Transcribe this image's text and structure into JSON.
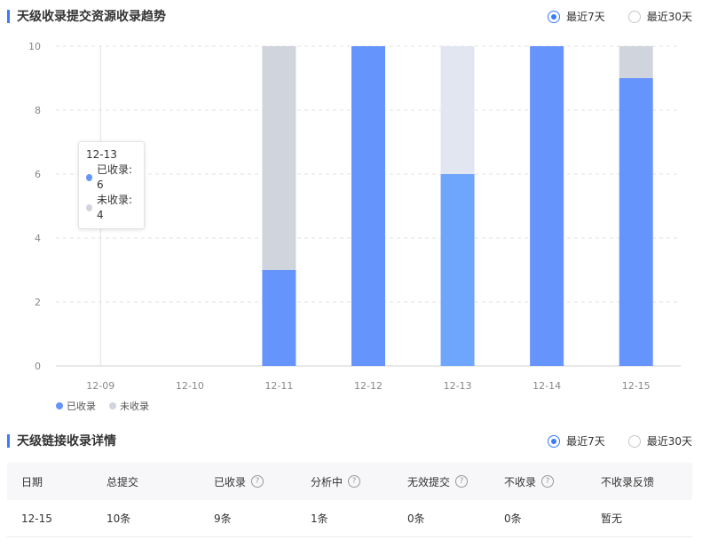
{
  "trend_section": {
    "title": "天级收录提交资源收录趋势",
    "range_options": [
      {
        "label": "最近7天",
        "selected": true
      },
      {
        "label": "最近30天",
        "selected": false
      }
    ]
  },
  "chart_data": {
    "type": "bar",
    "stacked": true,
    "categories": [
      "12-09",
      "12-10",
      "12-11",
      "12-12",
      "12-13",
      "12-14",
      "12-15"
    ],
    "series": [
      {
        "name": "已收录",
        "values": [
          0,
          0,
          3,
          10,
          6,
          10,
          9
        ],
        "color": "#6694fd"
      },
      {
        "name": "未收录",
        "values": [
          0,
          0,
          7,
          0,
          4,
          0,
          1
        ],
        "color": "#d0d4dc"
      }
    ],
    "highlight_category": "12-13",
    "highlight_colors": {
      "已收录": "#6ea6fe",
      "未收录": "#e1e6f0"
    },
    "ylim": [
      0,
      10
    ],
    "yticks": [
      0,
      2,
      4,
      6,
      8,
      10
    ],
    "grid": true,
    "legend_position": "bottom-left"
  },
  "tooltip": {
    "title": "12-13",
    "rows": [
      {
        "label": "已收录: 6",
        "color": "#6694fd"
      },
      {
        "label": "未收录: 4",
        "color": "#d0d4dc"
      }
    ]
  },
  "detail_section": {
    "title": "天级链接收录详情",
    "range_options": [
      {
        "label": "最近7天",
        "selected": true
      },
      {
        "label": "最近30天",
        "selected": false
      }
    ],
    "table": {
      "columns": [
        {
          "label": "日期",
          "help": false
        },
        {
          "label": "总提交",
          "help": false
        },
        {
          "label": "已收录",
          "help": true
        },
        {
          "label": "分析中",
          "help": true
        },
        {
          "label": "无效提交",
          "help": true
        },
        {
          "label": "不收录",
          "help": true
        },
        {
          "label": "不收录反馈",
          "help": false
        }
      ],
      "rows": [
        [
          "12-15",
          "10条",
          "9条",
          "1条",
          "0条",
          "0条",
          "暂无"
        ]
      ]
    }
  },
  "colors": {
    "accent": "#3a7bfd",
    "included": "#6694fd",
    "not_included": "#d0d4dc"
  }
}
